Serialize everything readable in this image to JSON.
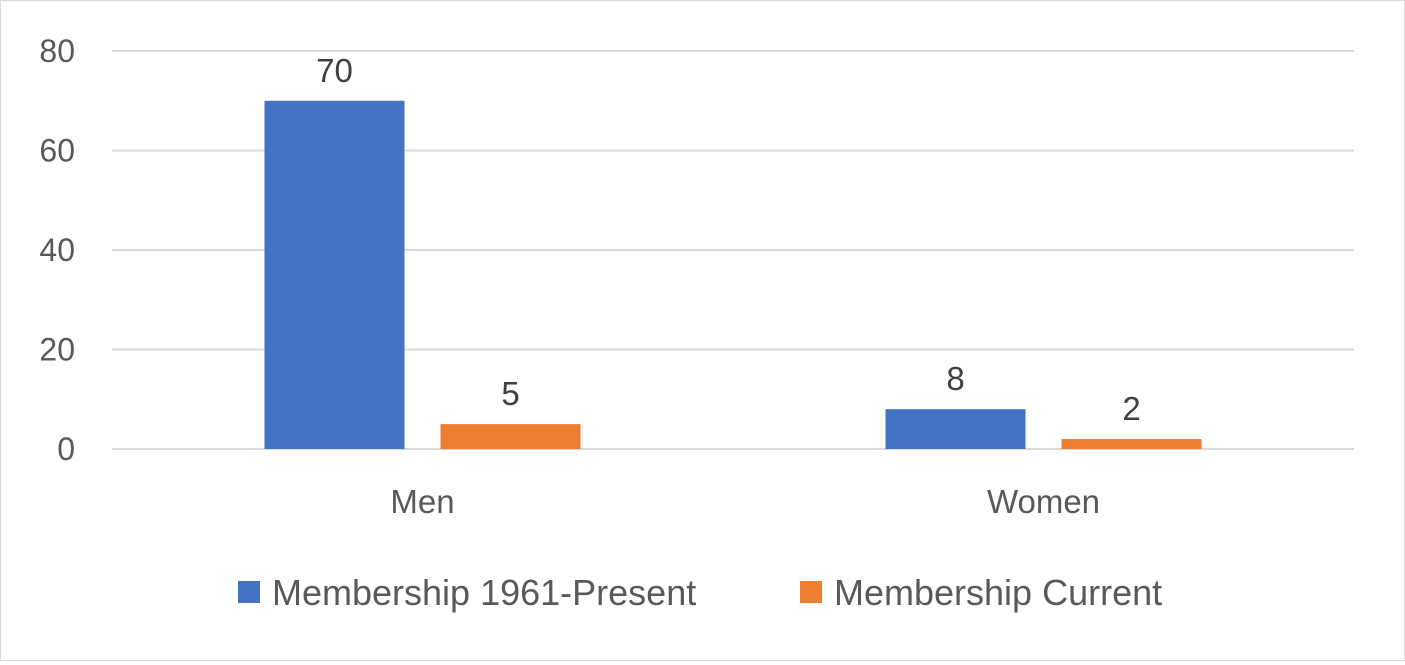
{
  "chart_data": {
    "type": "bar",
    "categories": [
      "Men",
      "Women"
    ],
    "series": [
      {
        "name": "Membership 1961-Present",
        "values": [
          70,
          8
        ],
        "color": "#4472C4"
      },
      {
        "name": "Membership Current",
        "values": [
          5,
          2
        ],
        "color": "#ED7D31"
      }
    ],
    "ylim": [
      0,
      80
    ],
    "yticks": [
      0,
      20,
      40,
      60,
      80
    ],
    "grid": true,
    "legend_position": "bottom",
    "data_labels": true
  }
}
